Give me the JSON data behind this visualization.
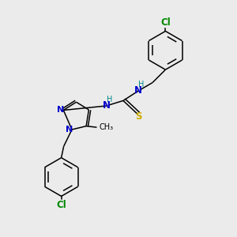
{
  "bg_color": "#ebebeb",
  "atom_colors": {
    "C": "#000000",
    "N": "#0000cc",
    "S": "#ccaa00",
    "Cl": "#008800",
    "H": "#008888"
  },
  "bond_color": "#000000",
  "lw": 1.1,
  "fs": 8.5,
  "fs_small": 7.0
}
